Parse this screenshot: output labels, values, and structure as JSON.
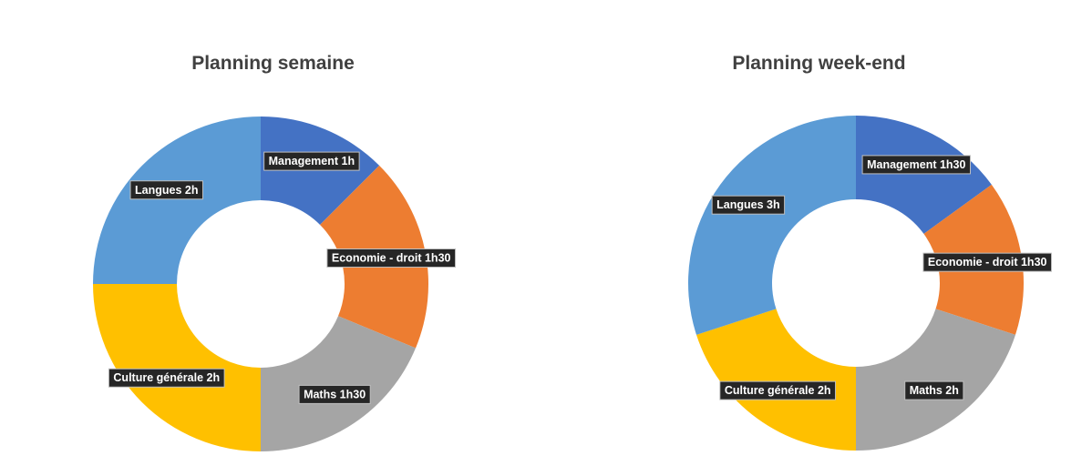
{
  "chart_data": [
    {
      "type": "donut",
      "title": "Planning semaine",
      "categories": [
        "Management",
        "Economie - droit",
        "Maths",
        "Culture générale",
        "Langues"
      ],
      "values": [
        1,
        1.5,
        1.5,
        2,
        2
      ],
      "data_labels": [
        "Management 1h",
        "Economie - droit 1h30",
        "Maths 1h30",
        "Culture générale 2h",
        "Langues 2h"
      ],
      "colors": [
        "#4472C4",
        "#ED7D31",
        "#A5A5A5",
        "#FFC000",
        "#5B9BD5"
      ],
      "legend": "none"
    },
    {
      "type": "donut",
      "title": "Planning week-end",
      "categories": [
        "Management",
        "Economie - droit",
        "Maths",
        "Culture générale",
        "Langues"
      ],
      "values": [
        1.5,
        1.5,
        2,
        2,
        3
      ],
      "data_labels": [
        "Management 1h30",
        "Economie - droit 1h30",
        "Maths 2h",
        "Culture générale 2h",
        "Langues 3h"
      ],
      "colors": [
        "#4472C4",
        "#ED7D31",
        "#A5A5A5",
        "#FFC000",
        "#5B9BD5"
      ],
      "legend": "none"
    }
  ]
}
